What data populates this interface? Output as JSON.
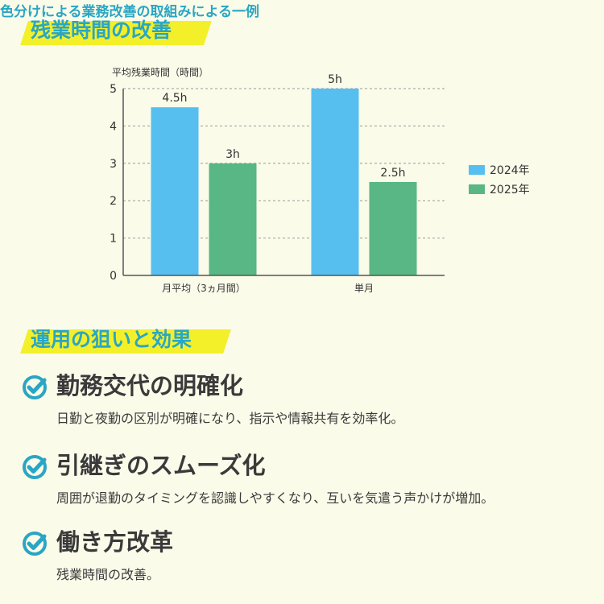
{
  "section1": {
    "title": "残業時間の改善",
    "subtitle": "色分けによる業務改善の取組みによる一例"
  },
  "section2": {
    "title": "運用の狙いと効果",
    "items": [
      {
        "title": "勤務交代の明確化",
        "desc": "日勤と夜勤の区別が明確になり、指示や情報共有を効率化。"
      },
      {
        "title": "引継ぎのスムーズ化",
        "desc": "周囲が退勤のタイミングを認識しやすくなり、互いを気遣う声かけが増加。"
      },
      {
        "title": "働き方改革",
        "desc": "残業時間の改善。"
      }
    ]
  },
  "colors": {
    "accent": "#2aa6c4",
    "highlight": "#f3f02a",
    "series_2024": "#56bff0",
    "series_2025": "#58b784"
  },
  "icons": {
    "bullet": "check-circle-icon"
  },
  "chart_data": {
    "type": "bar",
    "title": "",
    "ylabel": "平均残業時間（時間）",
    "xlabel": "",
    "ylim": [
      0,
      5
    ],
    "yticks": [
      0,
      1,
      2,
      3,
      4,
      5
    ],
    "grid": true,
    "legend": "right",
    "categories": [
      "月平均（3ヵ月間）",
      "単月"
    ],
    "series": [
      {
        "name": "2024年",
        "values": [
          4.5,
          5
        ],
        "labels": [
          "4.5h",
          "5h"
        ]
      },
      {
        "name": "2025年",
        "values": [
          3,
          2.5
        ],
        "labels": [
          "3h",
          "2.5h"
        ]
      }
    ]
  }
}
